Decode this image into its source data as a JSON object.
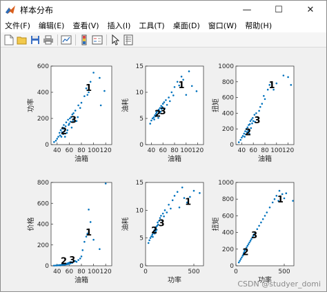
{
  "window": {
    "title": "样本分布",
    "controls": [
      "—",
      "☐",
      "✕"
    ]
  },
  "menu": [
    "文件(F)",
    "编辑(E)",
    "查看(V)",
    "插入(I)",
    "工具(T)",
    "桌面(D)",
    "窗口(W)",
    "帮助(H)"
  ],
  "toolbar": [
    "new-figure-icon",
    "open-file-icon",
    "save-icon",
    "print-icon",
    "link-plot-icon",
    "insert-colorbar-icon",
    "insert-legend-icon",
    "edit-plot-icon",
    "property-inspector-icon"
  ],
  "colors": {
    "marker": "#0072BD",
    "axes_bg": "#ffffff",
    "figure_bg": "#f0f0f0"
  },
  "watermark": "CSDN @studyer_domi",
  "chart_data": [
    {
      "type": "scatter",
      "xlabel": "油箱",
      "ylabel": "功率",
      "xlim": [
        30,
        130
      ],
      "ylim": [
        0,
        600
      ],
      "xticks": [
        40,
        60,
        80,
        100,
        120
      ],
      "yticks": [
        0,
        200,
        400,
        600
      ],
      "cluster_labels": [
        {
          "text": "1",
          "x": 92,
          "y": 410
        },
        {
          "text": "2",
          "x": 51,
          "y": 80
        },
        {
          "text": "3",
          "x": 67,
          "y": 165
        }
      ],
      "points": [
        [
          35,
          20
        ],
        [
          38,
          30
        ],
        [
          40,
          45
        ],
        [
          42,
          60
        ],
        [
          44,
          90
        ],
        [
          45,
          70
        ],
        [
          46,
          110
        ],
        [
          47,
          60
        ],
        [
          48,
          95
        ],
        [
          49,
          130
        ],
        [
          50,
          80
        ],
        [
          50,
          120
        ],
        [
          51,
          150
        ],
        [
          52,
          100
        ],
        [
          53,
          60
        ],
        [
          54,
          140
        ],
        [
          55,
          170
        ],
        [
          56,
          90
        ],
        [
          57,
          110
        ],
        [
          58,
          190
        ],
        [
          59,
          150
        ],
        [
          60,
          160
        ],
        [
          61,
          200
        ],
        [
          62,
          175
        ],
        [
          63,
          210
        ],
        [
          64,
          130
        ],
        [
          65,
          230
        ],
        [
          66,
          180
        ],
        [
          67,
          240
        ],
        [
          68,
          200
        ],
        [
          70,
          260
        ],
        [
          72,
          180
        ],
        [
          74,
          210
        ],
        [
          75,
          300
        ],
        [
          78,
          280
        ],
        [
          80,
          320
        ],
        [
          85,
          370
        ],
        [
          88,
          430
        ],
        [
          90,
          380
        ],
        [
          92,
          400
        ],
        [
          95,
          480
        ],
        [
          100,
          550
        ],
        [
          110,
          510
        ],
        [
          112,
          300
        ],
        [
          118,
          410
        ]
      ]
    },
    {
      "type": "scatter",
      "xlabel": "油箱",
      "ylabel": "油耗",
      "xlim": [
        30,
        130
      ],
      "ylim": [
        0,
        15
      ],
      "xticks": [
        40,
        60,
        80,
        100,
        120
      ],
      "yticks": [
        0,
        5,
        10,
        15
      ],
      "cluster_labels": [
        {
          "text": "1",
          "x": 92,
          "y": 10.8
        },
        {
          "text": "2",
          "x": 51,
          "y": 5.3
        },
        {
          "text": "3",
          "x": 60,
          "y": 5.8
        }
      ],
      "points": [
        [
          38,
          4
        ],
        [
          40,
          4.6
        ],
        [
          42,
          5
        ],
        [
          44,
          5.2
        ],
        [
          45,
          4.8
        ],
        [
          46,
          5.6
        ],
        [
          47,
          5.4
        ],
        [
          48,
          5.9
        ],
        [
          49,
          6.2
        ],
        [
          50,
          5.5
        ],
        [
          51,
          6.4
        ],
        [
          52,
          5.1
        ],
        [
          53,
          6.7
        ],
        [
          54,
          6
        ],
        [
          55,
          7
        ],
        [
          56,
          6.3
        ],
        [
          57,
          7.4
        ],
        [
          58,
          6.8
        ],
        [
          59,
          7.2
        ],
        [
          60,
          7.8
        ],
        [
          62,
          8.1
        ],
        [
          63,
          6.9
        ],
        [
          65,
          8.5
        ],
        [
          67,
          7.6
        ],
        [
          70,
          9
        ],
        [
          72,
          8.3
        ],
        [
          75,
          10
        ],
        [
          78,
          9.4
        ],
        [
          80,
          11
        ],
        [
          85,
          12
        ],
        [
          88,
          11.3
        ],
        [
          92,
          13
        ],
        [
          95,
          12.4
        ],
        [
          100,
          9.5
        ],
        [
          105,
          14
        ],
        [
          110,
          11.2
        ],
        [
          118,
          10.2
        ]
      ]
    },
    {
      "type": "scatter",
      "xlabel": "油箱",
      "ylabel": "扭矩",
      "xlim": [
        30,
        130
      ],
      "ylim": [
        0,
        1000
      ],
      "xticks": [
        40,
        60,
        80,
        100,
        120
      ],
      "yticks": [
        0,
        200,
        400,
        600,
        800,
        1000
      ],
      "cluster_labels": [
        {
          "text": "1",
          "x": 92,
          "y": 720
        },
        {
          "text": "2",
          "x": 51,
          "y": 120
        },
        {
          "text": "3",
          "x": 67,
          "y": 270
        }
      ],
      "points": [
        [
          35,
          30
        ],
        [
          38,
          60
        ],
        [
          40,
          90
        ],
        [
          42,
          110
        ],
        [
          44,
          140
        ],
        [
          45,
          100
        ],
        [
          46,
          170
        ],
        [
          47,
          130
        ],
        [
          48,
          200
        ],
        [
          49,
          160
        ],
        [
          50,
          220
        ],
        [
          51,
          180
        ],
        [
          52,
          250
        ],
        [
          53,
          140
        ],
        [
          54,
          260
        ],
        [
          55,
          300
        ],
        [
          56,
          210
        ],
        [
          57,
          320
        ],
        [
          58,
          270
        ],
        [
          59,
          340
        ],
        [
          60,
          300
        ],
        [
          62,
          380
        ],
        [
          63,
          290
        ],
        [
          65,
          400
        ],
        [
          67,
          350
        ],
        [
          70,
          430
        ],
        [
          72,
          480
        ],
        [
          75,
          520
        ],
        [
          78,
          620
        ],
        [
          80,
          580
        ],
        [
          85,
          700
        ],
        [
          88,
          760
        ],
        [
          92,
          780
        ],
        [
          95,
          700
        ],
        [
          100,
          780
        ],
        [
          112,
          880
        ],
        [
          120,
          860
        ],
        [
          125,
          760
        ]
      ]
    },
    {
      "type": "scatter",
      "xlabel": "油箱",
      "ylabel": "价格",
      "xlim": [
        30,
        130
      ],
      "ylim": [
        0,
        800
      ],
      "xticks": [
        40,
        60,
        80,
        100,
        120
      ],
      "yticks": [
        0,
        200,
        400,
        600,
        800
      ],
      "cluster_labels": [
        {
          "text": "1",
          "x": 92,
          "y": 290
        },
        {
          "text": "2",
          "x": 51,
          "y": 15
        },
        {
          "text": "3",
          "x": 65,
          "y": 25
        }
      ],
      "points": [
        [
          35,
          2
        ],
        [
          38,
          3
        ],
        [
          40,
          4
        ],
        [
          42,
          5
        ],
        [
          44,
          6
        ],
        [
          45,
          4
        ],
        [
          46,
          8
        ],
        [
          47,
          7
        ],
        [
          48,
          9
        ],
        [
          49,
          10
        ],
        [
          50,
          12
        ],
        [
          51,
          9
        ],
        [
          52,
          15
        ],
        [
          53,
          11
        ],
        [
          54,
          18
        ],
        [
          55,
          14
        ],
        [
          56,
          20
        ],
        [
          57,
          16
        ],
        [
          58,
          25
        ],
        [
          59,
          18
        ],
        [
          60,
          30
        ],
        [
          62,
          22
        ],
        [
          63,
          35
        ],
        [
          65,
          28
        ],
        [
          67,
          40
        ],
        [
          70,
          45
        ],
        [
          72,
          38
        ],
        [
          75,
          55
        ],
        [
          78,
          70
        ],
        [
          80,
          90
        ],
        [
          82,
          150
        ],
        [
          85,
          230
        ],
        [
          88,
          280
        ],
        [
          90,
          310
        ],
        [
          92,
          540
        ],
        [
          95,
          420
        ],
        [
          100,
          250
        ],
        [
          110,
          160
        ],
        [
          120,
          790
        ]
      ]
    },
    {
      "type": "scatter",
      "xlabel": "功率",
      "ylabel": "油耗",
      "xlim": [
        0,
        600
      ],
      "ylim": [
        0,
        15
      ],
      "xticks": [
        0,
        500
      ],
      "yticks": [
        0,
        5,
        10,
        15
      ],
      "cluster_labels": [
        {
          "text": "1",
          "x": 440,
          "y": 11
        },
        {
          "text": "2",
          "x": 90,
          "y": 5.8
        },
        {
          "text": "3",
          "x": 165,
          "y": 7.1
        }
      ],
      "points": [
        [
          30,
          4.1
        ],
        [
          40,
          4.6
        ],
        [
          50,
          5
        ],
        [
          60,
          5.3
        ],
        [
          70,
          5.6
        ],
        [
          75,
          5.2
        ],
        [
          80,
          5.9
        ],
        [
          85,
          6.1
        ],
        [
          90,
          6.4
        ],
        [
          95,
          5.8
        ],
        [
          100,
          6.7
        ],
        [
          105,
          6.2
        ],
        [
          110,
          7
        ],
        [
          115,
          6.5
        ],
        [
          120,
          7.2
        ],
        [
          125,
          7.8
        ],
        [
          130,
          7.4
        ],
        [
          140,
          8.1
        ],
        [
          150,
          8.6
        ],
        [
          160,
          9
        ],
        [
          170,
          8.2
        ],
        [
          180,
          9.4
        ],
        [
          190,
          8.9
        ],
        [
          200,
          10
        ],
        [
          220,
          9.6
        ],
        [
          240,
          11
        ],
        [
          260,
          10.3
        ],
        [
          280,
          11.8
        ],
        [
          300,
          12.6
        ],
        [
          330,
          13.3
        ],
        [
          350,
          10.5
        ],
        [
          380,
          14.1
        ],
        [
          400,
          12.2
        ],
        [
          430,
          11.4
        ],
        [
          460,
          12.4
        ],
        [
          500,
          13.5
        ],
        [
          560,
          13.1
        ]
      ]
    },
    {
      "type": "scatter",
      "xlabel": "功率",
      "ylabel": "扭矩",
      "xlim": [
        0,
        600
      ],
      "ylim": [
        0,
        1000
      ],
      "xticks": [
        0,
        500
      ],
      "yticks": [
        0,
        200,
        400,
        600,
        800,
        1000
      ],
      "cluster_labels": [
        {
          "text": "1",
          "x": 460,
          "y": 760
        },
        {
          "text": "2",
          "x": 100,
          "y": 130
        },
        {
          "text": "3",
          "x": 190,
          "y": 330
        }
      ],
      "points": [
        [
          30,
          40
        ],
        [
          40,
          60
        ],
        [
          50,
          80
        ],
        [
          60,
          100
        ],
        [
          70,
          120
        ],
        [
          75,
          130
        ],
        [
          80,
          150
        ],
        [
          85,
          160
        ],
        [
          90,
          180
        ],
        [
          95,
          190
        ],
        [
          100,
          200
        ],
        [
          110,
          220
        ],
        [
          120,
          240
        ],
        [
          130,
          260
        ],
        [
          140,
          280
        ],
        [
          150,
          300
        ],
        [
          160,
          320
        ],
        [
          170,
          340
        ],
        [
          180,
          360
        ],
        [
          190,
          380
        ],
        [
          200,
          400
        ],
        [
          220,
          440
        ],
        [
          240,
          480
        ],
        [
          260,
          520
        ],
        [
          280,
          560
        ],
        [
          300,
          600
        ],
        [
          320,
          640
        ],
        [
          350,
          700
        ],
        [
          380,
          760
        ],
        [
          400,
          800
        ],
        [
          420,
          840
        ],
        [
          440,
          780
        ],
        [
          450,
          900
        ],
        [
          480,
          860
        ],
        [
          500,
          810
        ],
        [
          520,
          870
        ],
        [
          590,
          780
        ]
      ]
    }
  ]
}
